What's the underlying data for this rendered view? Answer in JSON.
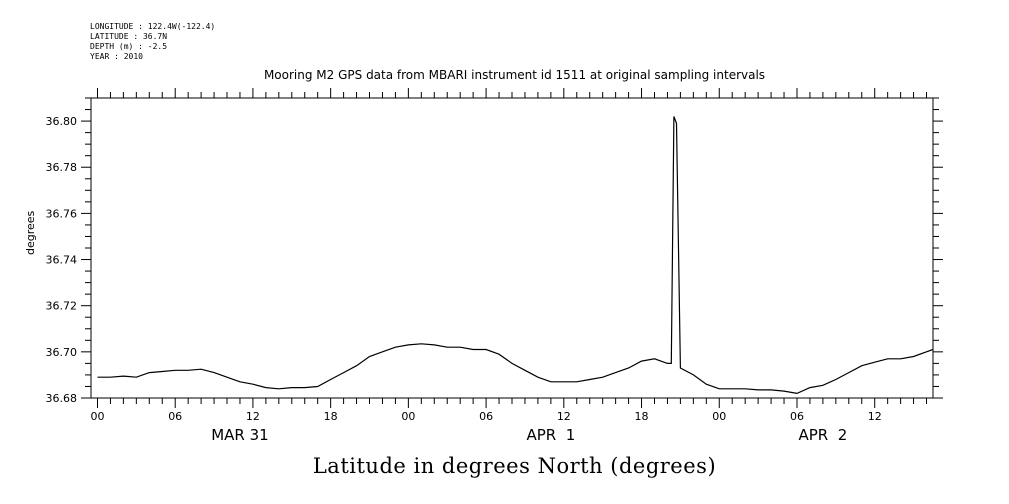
{
  "header": {
    "lines": [
      "LONGITUDE : 122.4W(-122.4)",
      "LATITUDE : 36.7N",
      "DEPTH (m) : -2.5",
      "YEAR : 2010"
    ]
  },
  "chart_data": {
    "type": "line",
    "title": "Mooring M2 GPS data from MBARI instrument id 1511 at original sampling intervals",
    "ylabel": "degrees",
    "xlabel": "Latitude in degrees North (degrees)",
    "ylim": [
      36.68,
      36.81
    ],
    "yticks": [
      36.68,
      36.7,
      36.72,
      36.74,
      36.76,
      36.78,
      36.8
    ],
    "ytick_labels": [
      "36.68",
      "36.70",
      "36.72",
      "36.74",
      "36.76",
      "36.78",
      "36.80"
    ],
    "xlim_hours": [
      -0.5,
      64.5
    ],
    "xticks": [
      {
        "hour": 0,
        "label": "00"
      },
      {
        "hour": 6,
        "label": "06"
      },
      {
        "hour": 12,
        "label": "12"
      },
      {
        "hour": 18,
        "label": "18"
      },
      {
        "hour": 24,
        "label": "00"
      },
      {
        "hour": 30,
        "label": "06"
      },
      {
        "hour": 36,
        "label": "12"
      },
      {
        "hour": 42,
        "label": "18"
      },
      {
        "hour": 48,
        "label": "00"
      },
      {
        "hour": 54,
        "label": "06"
      },
      {
        "hour": 60,
        "label": "12"
      }
    ],
    "date_labels": [
      {
        "hour": 11,
        "label": "MAR 31"
      },
      {
        "hour": 35,
        "label": "APR  1"
      },
      {
        "hour": 56,
        "label": "APR  2"
      }
    ],
    "grid": false,
    "series": [
      {
        "x": [
          0,
          1,
          2,
          3,
          4,
          5,
          6,
          7,
          8,
          9,
          10,
          11,
          12,
          13,
          14,
          15,
          16,
          17,
          18,
          19,
          20,
          21,
          22,
          23,
          24,
          25,
          26,
          27,
          28,
          29,
          30,
          31,
          32,
          33,
          34,
          35,
          36,
          37,
          38,
          39,
          40,
          41,
          42,
          43,
          44,
          44.3,
          44.5,
          44.7,
          45,
          46,
          47,
          48,
          49,
          50,
          51,
          52,
          53,
          54,
          55,
          56,
          57,
          58,
          59,
          60,
          61,
          62,
          63,
          64,
          64.5
        ],
        "y": [
          36.689,
          36.689,
          36.6895,
          36.689,
          36.691,
          36.6915,
          36.692,
          36.692,
          36.6925,
          36.691,
          36.689,
          36.687,
          36.686,
          36.6845,
          36.684,
          36.6845,
          36.6845,
          36.685,
          36.688,
          36.691,
          36.694,
          36.698,
          36.7,
          36.702,
          36.703,
          36.7035,
          36.703,
          36.702,
          36.702,
          36.701,
          36.701,
          36.699,
          36.695,
          36.692,
          36.689,
          36.687,
          36.687,
          36.687,
          36.688,
          36.689,
          36.691,
          36.693,
          36.696,
          36.697,
          36.695,
          36.695,
          36.802,
          36.799,
          36.693,
          36.69,
          36.686,
          36.684,
          36.684,
          36.684,
          36.6835,
          36.6835,
          36.683,
          36.682,
          36.6845,
          36.6855,
          36.688,
          36.691,
          36.694,
          36.6955,
          36.697,
          36.697,
          36.698,
          36.7,
          36.701
        ]
      }
    ]
  }
}
